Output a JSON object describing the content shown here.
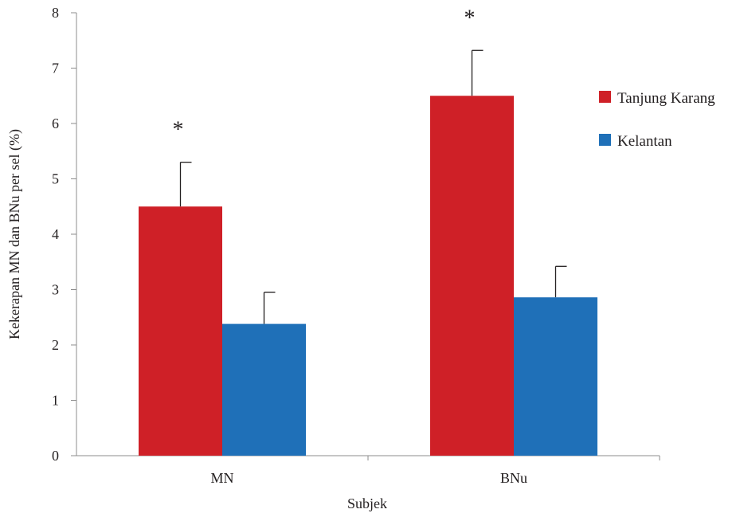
{
  "chart_data": {
    "type": "bar",
    "title": "",
    "xlabel": "Subjek",
    "ylabel": "Kekerapan MN dan BNu per sel (%)",
    "categories": [
      "MN",
      "BNu"
    ],
    "ylim": [
      0,
      8
    ],
    "yticks": [
      "0",
      "1",
      "2",
      "3",
      "4",
      "5",
      "6",
      "7",
      "8"
    ],
    "grid": false,
    "legend_position": "right",
    "series": [
      {
        "name": "Tanjung Karang",
        "color": "#cf2027",
        "values": [
          4.5,
          6.5
        ],
        "error": [
          0.8,
          0.82
        ],
        "significance": [
          "*",
          "*"
        ]
      },
      {
        "name": "Kelantan",
        "color": "#1f70b8",
        "values": [
          2.38,
          2.86
        ],
        "error": [
          0.57,
          0.56
        ],
        "significance": [
          "",
          ""
        ]
      }
    ]
  }
}
